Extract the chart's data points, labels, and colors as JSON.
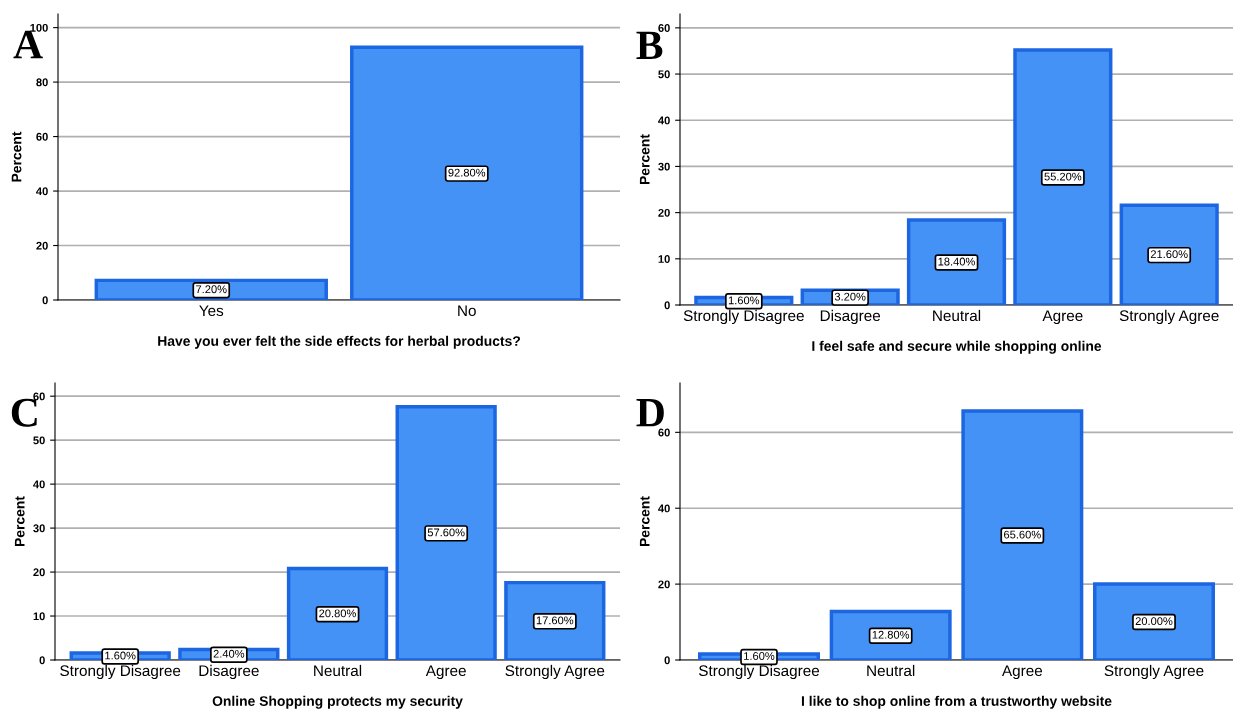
{
  "chart_data": [
    {
      "type": "bar",
      "xlabel": "Have you ever felt the side effects for herbal products?",
      "ylabel": "Percent",
      "categories": [
        "Yes",
        "No"
      ],
      "values": [
        7.2,
        92.8
      ],
      "color": "#4492f5",
      "value_labels": [
        "7.20%",
        "92.80%"
      ],
      "ylim": [
        0,
        105
      ],
      "yticks": [
        0,
        20,
        40,
        60,
        80,
        100
      ],
      "grid": "y",
      "annotations": [
        "A"
      ]
    },
    {
      "type": "bar",
      "xlabel": "I feel safe and secure while shopping online",
      "ylabel": "Percent",
      "categories": [
        "Strongly Disagree",
        "Disagree",
        "Neutral",
        "Agree",
        "Strongly Agree"
      ],
      "values": [
        1.6,
        3.2,
        18.4,
        55.2,
        21.6
      ],
      "color": "#4492f5",
      "value_labels": [
        "1.60%",
        "3.20%",
        "18.40%",
        "55.20%",
        "21.60%"
      ],
      "ylim": [
        0,
        63
      ],
      "yticks": [
        0,
        10,
        20,
        30,
        40,
        50,
        60
      ],
      "grid": "y",
      "annotations": [
        "B"
      ]
    },
    {
      "type": "bar",
      "xlabel": "Online Shopping protects my security",
      "ylabel": "Percent",
      "categories": [
        "Strongly Disagree",
        "Disagree",
        "Neutral",
        "Agree",
        "Strongly Agree"
      ],
      "values": [
        1.6,
        2.4,
        20.8,
        57.6,
        17.6
      ],
      "color": "#4492f5",
      "value_labels": [
        "1.60%",
        "2.40%",
        "20.80%",
        "57.60%",
        "17.60%"
      ],
      "ylim": [
        0,
        63
      ],
      "yticks": [
        0,
        10,
        20,
        30,
        40,
        50,
        60
      ],
      "grid": "y",
      "annotations": [
        "C"
      ]
    },
    {
      "type": "bar",
      "xlabel": "I like to shop online from a trustworthy website",
      "ylabel": "Percent",
      "categories": [
        "Strongly Disagree",
        "Neutral",
        "Agree",
        "Strongly Agree"
      ],
      "values": [
        1.6,
        12.8,
        65.6,
        20.0
      ],
      "color": "#4492f5",
      "value_labels": [
        "1.60%",
        "12.80%",
        "65.60%",
        "20.00%"
      ],
      "ylim": [
        0,
        73
      ],
      "yticks": [
        0,
        20,
        40,
        60
      ],
      "grid": "y",
      "annotations": [
        "D"
      ]
    }
  ]
}
